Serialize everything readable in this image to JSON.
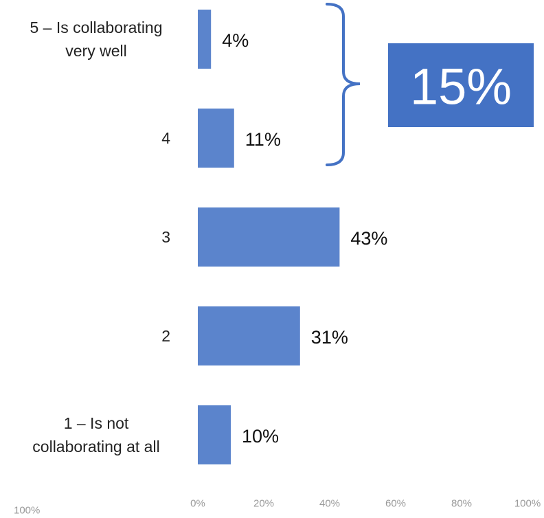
{
  "chart_data": {
    "type": "bar",
    "orientation": "horizontal",
    "categories": [
      [
        "5 – Is collaborating",
        "very well"
      ],
      [
        "4"
      ],
      [
        "3"
      ],
      [
        "2"
      ],
      [
        "1 – Is not",
        "collaborating at all"
      ]
    ],
    "values": [
      4,
      11,
      43,
      31,
      10
    ],
    "data_labels": [
      "4%",
      "11%",
      "43%",
      "31%",
      "10%"
    ],
    "x_ticks": [
      "0%",
      "20%",
      "40%",
      "60%",
      "80%",
      "100%"
    ],
    "x_range": [
      0,
      100
    ],
    "extra_tick_label": "100%",
    "grid": false,
    "bar_color": "#5b84cc",
    "callout": {
      "text": "15%",
      "spans_categories": [
        "5 – Is collaborating very well",
        "4"
      ],
      "background": "#4472c4",
      "bracket_color": "#4472c4"
    }
  }
}
